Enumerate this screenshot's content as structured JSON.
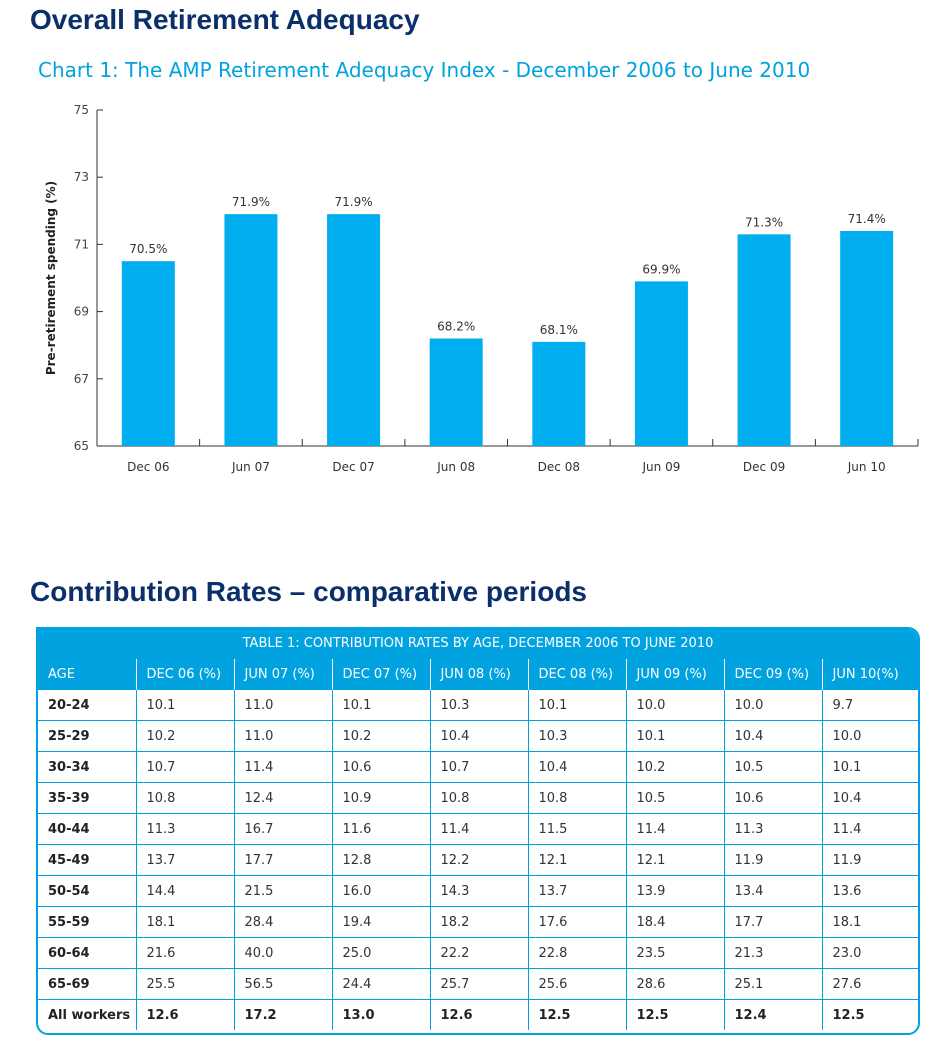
{
  "headings": {
    "top": "Overall Retirement Adequacy",
    "bottom": "Contribution Rates – comparative periods"
  },
  "chart_data": {
    "type": "bar",
    "title": "Chart 1: The AMP Retirement Adequacy Index - December 2006 to June 2010",
    "xlabel": "",
    "ylabel": "Pre-retirement spending (%)",
    "ylim": [
      65,
      75
    ],
    "yticks": [
      65,
      67,
      69,
      71,
      73,
      75
    ],
    "categories": [
      "Dec 06",
      "Jun 07",
      "Dec 07",
      "Jun 08",
      "Dec 08",
      "Jun 09",
      "Dec 09",
      "Jun 10"
    ],
    "values": [
      70.5,
      71.9,
      71.9,
      68.2,
      68.1,
      69.9,
      71.3,
      71.4
    ],
    "data_labels": [
      "70.5%",
      "71.9%",
      "71.9%",
      "68.2%",
      "68.1%",
      "69.9%",
      "71.3%",
      "71.4%"
    ],
    "grid": false,
    "bar_color": "#00aeef"
  },
  "table": {
    "caption": "TABLE 1: CONTRIBUTION RATES BY AGE, DECEMBER 2006 TO JUNE 2010",
    "headers": [
      "AGE",
      "DEC 06 (%)",
      "JUN 07 (%)",
      "DEC 07 (%)",
      "JUN 08 (%)",
      "DEC 08 (%)",
      "JUN 09 (%)",
      "DEC 09 (%)",
      "JUN 10(%)"
    ],
    "rows": [
      [
        "20-24",
        "10.1",
        "11.0",
        "10.1",
        "10.3",
        "10.1",
        "10.0",
        "10.0",
        "9.7"
      ],
      [
        "25-29",
        "10.2",
        "11.0",
        "10.2",
        "10.4",
        "10.3",
        "10.1",
        "10.4",
        "10.0"
      ],
      [
        "30-34",
        "10.7",
        "11.4",
        "10.6",
        "10.7",
        "10.4",
        "10.2",
        "10.5",
        "10.1"
      ],
      [
        "35-39",
        "10.8",
        "12.4",
        "10.9",
        "10.8",
        "10.8",
        "10.5",
        "10.6",
        "10.4"
      ],
      [
        "40-44",
        "11.3",
        "16.7",
        "11.6",
        "11.4",
        "11.5",
        "11.4",
        "11.3",
        "11.4"
      ],
      [
        "45-49",
        "13.7",
        "17.7",
        "12.8",
        "12.2",
        "12.1",
        "12.1",
        "11.9",
        "11.9"
      ],
      [
        "50-54",
        "14.4",
        "21.5",
        "16.0",
        "14.3",
        "13.7",
        "13.9",
        "13.4",
        "13.6"
      ],
      [
        "55-59",
        "18.1",
        "28.4",
        "19.4",
        "18.2",
        "17.6",
        "18.4",
        "17.7",
        "18.1"
      ],
      [
        "60-64",
        "21.6",
        "40.0",
        "25.0",
        "22.2",
        "22.8",
        "23.5",
        "21.3",
        "23.0"
      ],
      [
        "65-69",
        "25.5",
        "56.5",
        "24.4",
        "25.7",
        "25.6",
        "28.6",
        "25.1",
        "27.6"
      ],
      [
        "All workers",
        "12.6",
        "17.2",
        "13.0",
        "12.6",
        "12.5",
        "12.5",
        "12.4",
        "12.5"
      ]
    ]
  }
}
